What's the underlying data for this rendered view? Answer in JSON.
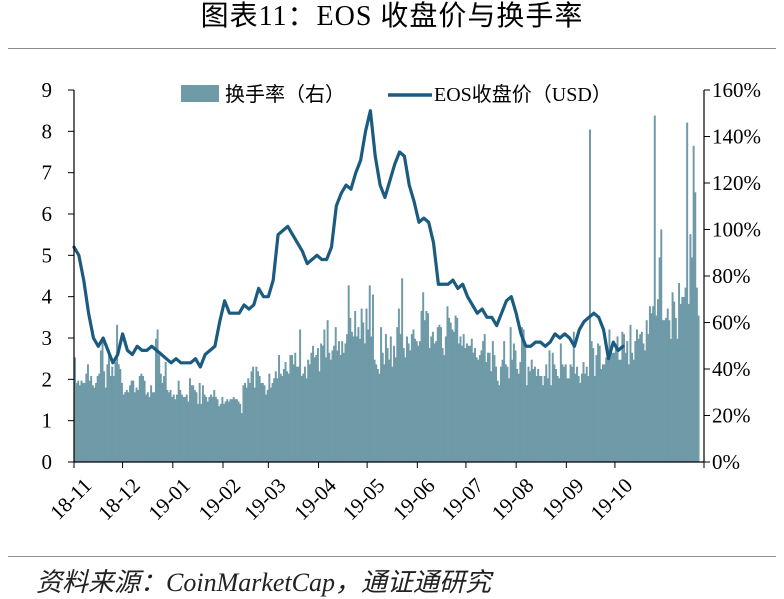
{
  "figure": {
    "title": "图表11：EOS 收盘价与换手率",
    "source": "资料来源：CoinMarketCap，通证通研究"
  },
  "chart_data": {
    "type": "bar+line",
    "x_tick_labels": [
      "18-11",
      "18-12",
      "19-01",
      "19-02",
      "19-03",
      "19-04",
      "19-05",
      "19-06",
      "19-07",
      "19-08",
      "19-09",
      "19-10"
    ],
    "left_axis": {
      "min": 0,
      "max": 9,
      "ticks": [
        "0",
        "1",
        "2",
        "3",
        "4",
        "5",
        "6",
        "7",
        "8",
        "9"
      ]
    },
    "right_axis": {
      "min": 0,
      "max": 1.6,
      "ticks": [
        "0%",
        "20%",
        "40%",
        "60%",
        "80%",
        "100%",
        "120%",
        "140%",
        "160%"
      ]
    },
    "legend": {
      "position": "top-center",
      "turnover_label": "换手率（右）",
      "price_label": "EOS收盘价（USD）"
    },
    "colors": {
      "bar": "#6f9aa8",
      "line": "#1b5b7f",
      "axis": "#000000"
    },
    "series": [
      {
        "name": "EOS收盘价（USD）",
        "axis": "left",
        "type": "line",
        "x_start": "2018-11-01",
        "step_days": 3,
        "values": [
          5.2,
          5.0,
          4.4,
          3.6,
          3.0,
          2.8,
          3.0,
          2.7,
          2.4,
          2.6,
          3.1,
          2.7,
          2.6,
          2.8,
          2.7,
          2.7,
          2.8,
          2.7,
          2.6,
          2.5,
          2.4,
          2.5,
          2.4,
          2.4,
          2.4,
          2.5,
          2.3,
          2.6,
          2.7,
          2.8,
          3.4,
          3.9,
          3.6,
          3.6,
          3.6,
          3.8,
          3.7,
          3.8,
          4.2,
          4.0,
          4.0,
          4.4,
          5.5,
          5.6,
          5.7,
          5.5,
          5.3,
          5.1,
          4.8,
          4.9,
          5.0,
          4.9,
          4.9,
          5.2,
          6.2,
          6.5,
          6.7,
          6.6,
          7.0,
          7.3,
          8.0,
          8.5,
          7.4,
          6.7,
          6.4,
          6.8,
          7.2,
          7.5,
          7.4,
          6.7,
          6.3,
          5.8,
          5.9,
          5.8,
          5.3,
          4.3,
          4.3,
          4.3,
          4.4,
          4.2,
          4.3,
          4.0,
          3.8,
          3.6,
          3.7,
          3.5,
          3.5,
          3.3,
          3.6,
          3.9,
          4.0,
          3.6,
          3.1,
          2.8,
          2.8,
          2.9,
          2.9,
          2.8,
          2.9,
          3.1,
          3.0,
          3.1,
          3.0,
          2.8,
          3.2,
          3.4,
          3.5,
          3.6,
          3.5,
          3.2,
          2.5,
          2.9,
          2.7,
          2.8
        ]
      },
      {
        "name": "换手率（右）",
        "axis": "right",
        "type": "bar",
        "x_start": "2018-11-01",
        "step_days": 1,
        "values": [
          0.45,
          0.34,
          0.35,
          0.33,
          0.35,
          0.34,
          0.34,
          0.38,
          0.42,
          0.35,
          0.37,
          0.33,
          0.32,
          0.34,
          0.37,
          0.38,
          0.48,
          0.52,
          0.39,
          0.32,
          0.42,
          0.47,
          0.37,
          0.41,
          0.37,
          0.43,
          0.59,
          0.42,
          0.4,
          0.34,
          0.29,
          0.3,
          0.31,
          0.3,
          0.33,
          0.35,
          0.35,
          0.3,
          0.32,
          0.31,
          0.37,
          0.38,
          0.37,
          0.35,
          0.29,
          0.3,
          0.28,
          0.33,
          0.3,
          0.3,
          0.53,
          0.57,
          0.46,
          0.38,
          0.34,
          0.37,
          0.43,
          0.31,
          0.3,
          0.31,
          0.28,
          0.29,
          0.27,
          0.29,
          0.35,
          0.31,
          0.29,
          0.28,
          0.28,
          0.29,
          0.26,
          0.36,
          0.33,
          0.33,
          0.31,
          0.3,
          0.25,
          0.34,
          0.25,
          0.33,
          0.29,
          0.28,
          0.26,
          0.28,
          0.29,
          0.28,
          0.31,
          0.28,
          0.27,
          0.24,
          0.25,
          0.28,
          0.25,
          0.26,
          0.27,
          0.26,
          0.27,
          0.27,
          0.28,
          0.27,
          0.27,
          0.26,
          0.25,
          0.21,
          0.33,
          0.34,
          0.32,
          0.36,
          0.34,
          0.39,
          0.41,
          0.32,
          0.41,
          0.39,
          0.37,
          0.34,
          0.34,
          0.33,
          0.29,
          0.31,
          0.38,
          0.32,
          0.34,
          0.36,
          0.39,
          0.36,
          0.46,
          0.38,
          0.37,
          0.4,
          0.43,
          0.39,
          0.38,
          0.46,
          0.46,
          0.42,
          0.47,
          0.41,
          0.41,
          0.57,
          0.37,
          0.38,
          0.41,
          0.36,
          0.44,
          0.42,
          0.47,
          0.5,
          0.45,
          0.46,
          0.49,
          0.39,
          0.51,
          0.5,
          0.57,
          0.45,
          0.61,
          0.47,
          0.44,
          0.48,
          0.5,
          0.58,
          0.48,
          0.52,
          0.46,
          0.52,
          0.47,
          0.51,
          0.55,
          0.76,
          0.62,
          0.56,
          0.54,
          0.65,
          0.54,
          0.58,
          0.53,
          0.66,
          0.6,
          0.51,
          0.66,
          0.57,
          0.76,
          0.54,
          0.72,
          0.44,
          0.42,
          0.4,
          0.38,
          0.58,
          0.47,
          0.42,
          0.55,
          0.49,
          0.44,
          0.54,
          0.41,
          0.5,
          0.45,
          0.58,
          0.66,
          0.55,
          0.79,
          0.49,
          0.45,
          0.54,
          0.51,
          0.48,
          0.55,
          0.57,
          0.53,
          0.52,
          0.5,
          0.52,
          0.65,
          0.73,
          0.61,
          0.65,
          0.64,
          0.49,
          0.54,
          0.56,
          0.51,
          0.52,
          0.58,
          0.59,
          0.58,
          0.49,
          0.46,
          0.54,
          0.67,
          0.62,
          0.6,
          0.57,
          0.56,
          0.63,
          0.62,
          0.51,
          0.54,
          0.5,
          0.55,
          0.49,
          0.51,
          0.5,
          0.5,
          0.53,
          0.47,
          0.49,
          0.45,
          0.44,
          0.46,
          0.48,
          0.52,
          0.55,
          0.43,
          0.47,
          0.47,
          0.39,
          0.52,
          0.46,
          0.41,
          0.35,
          0.33,
          0.41,
          0.44,
          0.52,
          0.42,
          0.41,
          0.36,
          0.58,
          0.44,
          0.51,
          0.48,
          0.4,
          0.38,
          0.43,
          0.58,
          0.57,
          0.49,
          0.33,
          0.41,
          0.39,
          0.44,
          0.4,
          0.41,
          0.37,
          0.4,
          0.37,
          0.37,
          0.33,
          0.37,
          0.42,
          0.36,
          0.48,
          0.33,
          0.47,
          0.42,
          0.4,
          0.37,
          0.36,
          0.51,
          0.42,
          0.41,
          0.42,
          0.36,
          0.36,
          0.42,
          0.41,
          0.56,
          0.38,
          0.41,
          0.37,
          0.34,
          0.38,
          0.43,
          0.38,
          0.41,
          0.37,
          1.43,
          0.52,
          0.49,
          0.37,
          0.46,
          0.51,
          0.5,
          0.4,
          0.42,
          0.42,
          0.45,
          0.46,
          0.57,
          0.48,
          0.47,
          0.47,
          0.5,
          0.54,
          0.44,
          0.44,
          0.56,
          0.55,
          0.47,
          0.52,
          0.42,
          0.59,
          0.47,
          0.44,
          0.52,
          0.57,
          0.53,
          0.55,
          0.56,
          0.51,
          0.48,
          0.61,
          0.55,
          0.67,
          0.64,
          0.67,
          1.49,
          0.63,
          0.7,
          0.88,
          1.0,
          0.61,
          0.61,
          0.62,
          0.66,
          0.61,
          0.53,
          0.73,
          0.69,
          0.62,
          0.53,
          0.77,
          0.68,
          0.71,
          0.71,
          0.75,
          1.46,
          0.68,
          0.98,
          0.88,
          1.36,
          1.16,
          0.75,
          0.63
        ]
      }
    ]
  }
}
